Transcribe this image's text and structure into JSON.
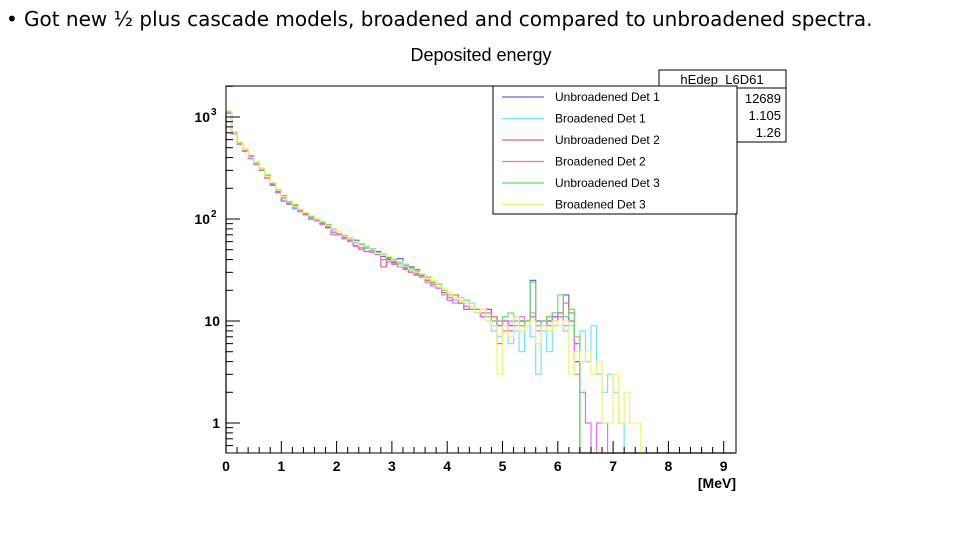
{
  "slide": {
    "bullet": "Got new ½ plus cascade models, broadened and compared to unbroadened spectra."
  },
  "chart_data": {
    "type": "line",
    "style": "step-histogram",
    "title": "Deposited energy",
    "xlabel": "[MeV]",
    "ylabel": "",
    "xlim": [
      0,
      9.2
    ],
    "ylim": [
      0.5,
      2000
    ],
    "yscale": "log",
    "x_ticks": [
      "0",
      "1",
      "2",
      "3",
      "4",
      "5",
      "6",
      "7",
      "8",
      "9"
    ],
    "y_ticks": [
      {
        "value": 1,
        "label": "1"
      },
      {
        "value": 10,
        "label": "10"
      },
      {
        "value": 100,
        "label": "10",
        "exp": "2"
      },
      {
        "value": 1000,
        "label": "10",
        "exp": "3"
      }
    ],
    "bin_width": 0.1,
    "x_start": 0,
    "legend_position": "top-right",
    "stats_box": {
      "name": "hEdep_L6D61",
      "values": [
        "12689",
        "1.105",
        "1.26"
      ]
    },
    "series": [
      {
        "name": "Unbroadened Det 1",
        "color": "#5a6ad8",
        "values": [
          1100,
          690,
          550,
          470,
          410,
          345,
          300,
          265,
          215,
          185,
          150,
          140,
          128,
          118,
          115,
          100,
          96,
          90,
          82,
          80,
          70,
          66,
          62,
          62,
          55,
          52,
          49,
          48,
          43,
          40,
          38,
          41,
          33,
          34,
          29,
          27,
          25,
          24,
          21,
          19,
          17,
          16,
          15,
          15,
          13,
          12,
          11,
          13,
          10,
          9,
          10,
          9,
          11,
          10,
          9,
          25,
          10,
          9,
          10,
          11,
          12,
          18,
          10,
          4,
          0,
          0,
          0,
          0,
          0,
          0,
          0,
          0,
          0,
          0,
          0,
          0
        ]
      },
      {
        "name": "Broadened Det 1",
        "color": "#6ee8f2",
        "values": [
          1080,
          700,
          560,
          480,
          400,
          350,
          305,
          255,
          220,
          190,
          160,
          145,
          125,
          120,
          110,
          105,
          95,
          92,
          86,
          76,
          72,
          67,
          63,
          58,
          56,
          54,
          48,
          46,
          45,
          42,
          40,
          36,
          36,
          31,
          30,
          28,
          26,
          23,
          22,
          20,
          18,
          16,
          17,
          14,
          15,
          12,
          12,
          10,
          8,
          7,
          9,
          6,
          8,
          5,
          9,
          7,
          3,
          8,
          5,
          9,
          12,
          8,
          9,
          5,
          8,
          4,
          9,
          3,
          2,
          3,
          2,
          1,
          0,
          0,
          0,
          0
        ]
      },
      {
        "name": "Unbroadened Det 2",
        "color": "#e06a6a",
        "values": [
          1100,
          700,
          550,
          470,
          390,
          350,
          300,
          265,
          225,
          185,
          165,
          148,
          135,
          122,
          110,
          108,
          100,
          94,
          84,
          70,
          70,
          64,
          62,
          55,
          52,
          48,
          50,
          46,
          34,
          42,
          36,
          38,
          34,
          30,
          32,
          28,
          25,
          23,
          22,
          19,
          16,
          18,
          15,
          13,
          14,
          13,
          12,
          12,
          11,
          6,
          10,
          8,
          10,
          9,
          10,
          11,
          9,
          10,
          11,
          10,
          12,
          15,
          12,
          6,
          0,
          0,
          0,
          0,
          0,
          0,
          0,
          0,
          0,
          0,
          0,
          0
        ]
      },
      {
        "name": "Broadened Det 2",
        "color": "#f06af0",
        "values": [
          1090,
          680,
          540,
          460,
          395,
          340,
          310,
          250,
          220,
          180,
          160,
          142,
          130,
          118,
          112,
          104,
          97,
          88,
          88,
          74,
          70,
          65,
          60,
          54,
          50,
          52,
          47,
          45,
          40,
          38,
          37,
          34,
          32,
          33,
          28,
          27,
          24,
          22,
          21,
          18,
          17,
          15,
          16,
          14,
          13,
          13,
          11,
          12,
          9,
          10,
          8,
          10,
          9,
          11,
          10,
          12,
          8,
          10,
          9,
          12,
          11,
          9,
          10,
          3,
          2,
          1,
          0,
          1,
          1,
          0,
          0,
          0,
          0,
          0,
          0,
          0
        ]
      },
      {
        "name": "Unbroadened Det 3",
        "color": "#6adc6a",
        "values": [
          1120,
          710,
          565,
          485,
          420,
          360,
          315,
          270,
          225,
          195,
          170,
          150,
          138,
          124,
          115,
          106,
          99,
          92,
          88,
          79,
          72,
          69,
          65,
          60,
          57,
          52,
          51,
          47,
          45,
          41,
          40,
          37,
          35,
          33,
          31,
          29,
          27,
          24,
          23,
          20,
          18,
          17,
          16,
          16,
          14,
          12,
          13,
          11,
          10,
          10,
          11,
          12,
          10,
          9,
          10,
          24,
          9,
          10,
          11,
          12,
          18,
          11,
          13,
          7,
          0,
          0,
          0,
          0,
          0,
          0,
          0,
          0,
          0,
          0,
          0,
          0
        ]
      },
      {
        "name": "Broadened Det 3",
        "color": "#f2f270",
        "values": [
          1150,
          700,
          560,
          480,
          405,
          355,
          310,
          262,
          228,
          192,
          165,
          150,
          132,
          125,
          116,
          108,
          100,
          95,
          86,
          80,
          76,
          70,
          64,
          60,
          55,
          55,
          50,
          46,
          44,
          43,
          39,
          38,
          34,
          32,
          30,
          29,
          26,
          25,
          22,
          21,
          19,
          17,
          16,
          15,
          14,
          12,
          13,
          10,
          9,
          3,
          9,
          7,
          11,
          8,
          9,
          10,
          6,
          9,
          8,
          10,
          9,
          10,
          3,
          5,
          4,
          5,
          3,
          4,
          1,
          1,
          3,
          1,
          2,
          1,
          1,
          0
        ]
      }
    ]
  }
}
